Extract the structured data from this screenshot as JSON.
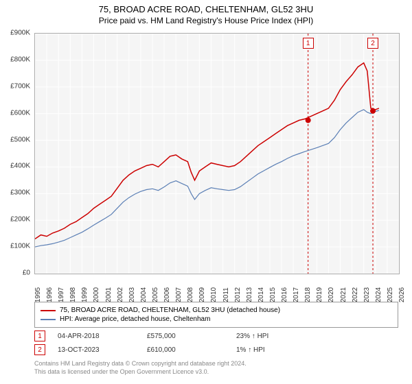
{
  "title": {
    "line1": "75, BROAD ACRE ROAD, CHELTENHAM, GL52 3HU",
    "line2": "Price paid vs. HM Land Registry's House Price Index (HPI)"
  },
  "chart": {
    "type": "line",
    "background_color": "#f5f5f5",
    "border_color": "#aaaaaa",
    "grid_color": "#ffffff",
    "ylim": [
      0,
      900000
    ],
    "ytick_step": 100000,
    "y_prefix": "£",
    "y_labels": [
      "£0",
      "£100K",
      "£200K",
      "£300K",
      "£400K",
      "£500K",
      "£600K",
      "£700K",
      "£800K",
      "£900K"
    ],
    "xlim": [
      1995,
      2026
    ],
    "x_labels": [
      "1995",
      "1996",
      "1997",
      "1998",
      "1999",
      "2000",
      "2001",
      "2002",
      "2003",
      "2004",
      "2005",
      "2006",
      "2007",
      "2008",
      "2009",
      "2010",
      "2011",
      "2012",
      "2013",
      "2014",
      "2015",
      "2016",
      "2017",
      "2018",
      "2019",
      "2020",
      "2021",
      "2022",
      "2023",
      "2024",
      "2025",
      "2026"
    ],
    "series": [
      {
        "name": "property",
        "label": "75, BROAD ACRE ROAD, CHELTENHAM, GL52 3HU (detached house)",
        "color": "#cc0000",
        "line_width": 1.5,
        "data": [
          [
            1995,
            130
          ],
          [
            1995.5,
            145
          ],
          [
            1996,
            140
          ],
          [
            1996.5,
            152
          ],
          [
            1997,
            160
          ],
          [
            1997.5,
            170
          ],
          [
            1998,
            185
          ],
          [
            1998.5,
            195
          ],
          [
            1999,
            210
          ],
          [
            1999.5,
            225
          ],
          [
            2000,
            245
          ],
          [
            2000.5,
            260
          ],
          [
            2001,
            275
          ],
          [
            2001.5,
            290
          ],
          [
            2002,
            320
          ],
          [
            2002.5,
            350
          ],
          [
            2003,
            370
          ],
          [
            2003.5,
            385
          ],
          [
            2004,
            395
          ],
          [
            2004.5,
            405
          ],
          [
            2005,
            410
          ],
          [
            2005.5,
            400
          ],
          [
            2006,
            420
          ],
          [
            2006.5,
            440
          ],
          [
            2007,
            445
          ],
          [
            2007.5,
            430
          ],
          [
            2008,
            420
          ],
          [
            2008.3,
            380
          ],
          [
            2008.6,
            350
          ],
          [
            2009,
            385
          ],
          [
            2009.5,
            400
          ],
          [
            2010,
            415
          ],
          [
            2010.5,
            410
          ],
          [
            2011,
            405
          ],
          [
            2011.5,
            400
          ],
          [
            2012,
            405
          ],
          [
            2012.5,
            420
          ],
          [
            2013,
            440
          ],
          [
            2013.5,
            460
          ],
          [
            2014,
            480
          ],
          [
            2014.5,
            495
          ],
          [
            2015,
            510
          ],
          [
            2015.5,
            525
          ],
          [
            2016,
            540
          ],
          [
            2016.5,
            555
          ],
          [
            2017,
            565
          ],
          [
            2017.5,
            575
          ],
          [
            2018,
            580
          ],
          [
            2018.5,
            590
          ],
          [
            2019,
            600
          ],
          [
            2019.5,
            610
          ],
          [
            2020,
            620
          ],
          [
            2020.5,
            650
          ],
          [
            2021,
            690
          ],
          [
            2021.5,
            720
          ],
          [
            2022,
            745
          ],
          [
            2022.5,
            775
          ],
          [
            2023,
            790
          ],
          [
            2023.3,
            760
          ],
          [
            2023.6,
            620
          ],
          [
            2024,
            615
          ],
          [
            2024.3,
            620
          ]
        ]
      },
      {
        "name": "hpi",
        "label": "HPI: Average price, detached house, Cheltenham",
        "color": "#5b7fb5",
        "line_width": 1.2,
        "data": [
          [
            1995,
            100
          ],
          [
            1995.5,
            105
          ],
          [
            1996,
            108
          ],
          [
            1996.5,
            112
          ],
          [
            1997,
            118
          ],
          [
            1997.5,
            125
          ],
          [
            1998,
            135
          ],
          [
            1998.5,
            145
          ],
          [
            1999,
            155
          ],
          [
            1999.5,
            168
          ],
          [
            2000,
            182
          ],
          [
            2000.5,
            195
          ],
          [
            2001,
            208
          ],
          [
            2001.5,
            222
          ],
          [
            2002,
            245
          ],
          [
            2002.5,
            268
          ],
          [
            2003,
            285
          ],
          [
            2003.5,
            298
          ],
          [
            2004,
            308
          ],
          [
            2004.5,
            315
          ],
          [
            2005,
            318
          ],
          [
            2005.5,
            312
          ],
          [
            2006,
            325
          ],
          [
            2006.5,
            340
          ],
          [
            2007,
            348
          ],
          [
            2007.5,
            338
          ],
          [
            2008,
            328
          ],
          [
            2008.3,
            300
          ],
          [
            2008.6,
            278
          ],
          [
            2009,
            300
          ],
          [
            2009.5,
            312
          ],
          [
            2010,
            322
          ],
          [
            2010.5,
            318
          ],
          [
            2011,
            315
          ],
          [
            2011.5,
            312
          ],
          [
            2012,
            315
          ],
          [
            2012.5,
            326
          ],
          [
            2013,
            342
          ],
          [
            2013.5,
            358
          ],
          [
            2014,
            374
          ],
          [
            2014.5,
            386
          ],
          [
            2015,
            398
          ],
          [
            2015.5,
            410
          ],
          [
            2016,
            420
          ],
          [
            2016.5,
            432
          ],
          [
            2017,
            442
          ],
          [
            2017.5,
            450
          ],
          [
            2018,
            458
          ],
          [
            2018.5,
            465
          ],
          [
            2019,
            472
          ],
          [
            2019.5,
            480
          ],
          [
            2020,
            488
          ],
          [
            2020.5,
            510
          ],
          [
            2021,
            540
          ],
          [
            2021.5,
            565
          ],
          [
            2022,
            585
          ],
          [
            2022.5,
            605
          ],
          [
            2023,
            615
          ],
          [
            2023.3,
            605
          ],
          [
            2023.6,
            600
          ],
          [
            2024,
            608
          ],
          [
            2024.3,
            612
          ]
        ]
      }
    ],
    "markers": [
      {
        "id": "1",
        "x": 2018.26,
        "badge_color": "#cc0000",
        "dot_y": 575
      },
      {
        "id": "2",
        "x": 2023.78,
        "badge_color": "#cc0000",
        "dot_y": 610
      }
    ]
  },
  "legend": {
    "series1_label": "75, BROAD ACRE ROAD, CHELTENHAM, GL52 3HU (detached house)",
    "series1_color": "#cc0000",
    "series2_label": "HPI: Average price, detached house, Cheltenham",
    "series2_color": "#5b7fb5"
  },
  "marker_table": [
    {
      "id": "1",
      "badge_color": "#cc0000",
      "date": "04-APR-2018",
      "price": "£575,000",
      "delta": "23% ↑ HPI"
    },
    {
      "id": "2",
      "badge_color": "#cc0000",
      "date": "13-OCT-2023",
      "price": "£610,000",
      "delta": "1% ↑ HPI"
    }
  ],
  "footer": {
    "line1": "Contains HM Land Registry data © Crown copyright and database right 2024.",
    "line2": "This data is licensed under the Open Government Licence v3.0."
  }
}
